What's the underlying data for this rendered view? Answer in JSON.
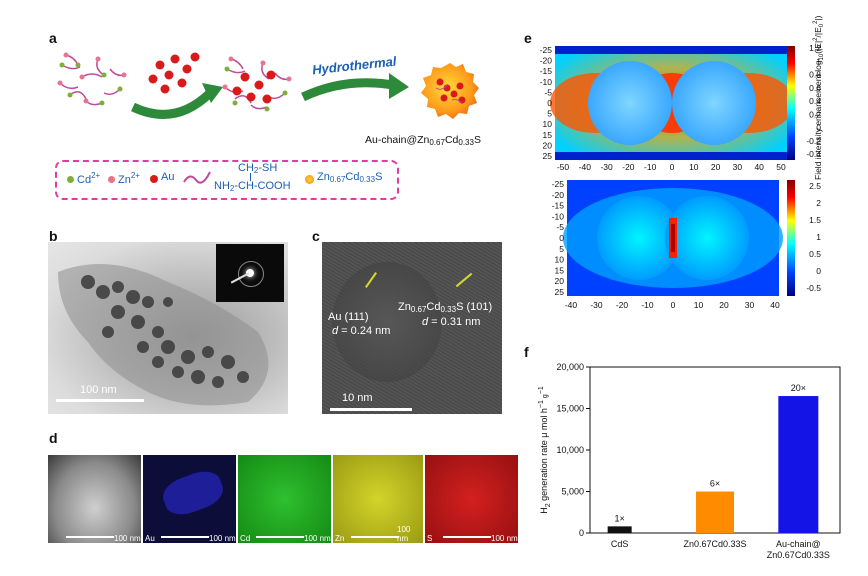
{
  "panels": {
    "a": "a",
    "b": "b",
    "c": "c",
    "d": "d",
    "e": "e",
    "f": "f"
  },
  "panel_a": {
    "hydrothermal": "Hydrothermal",
    "product_label_main": "Au-chain@Zn",
    "product_sub1": "0.67",
    "product_mid": "Cd",
    "product_sub2": "0.33",
    "product_end": "S",
    "legend": {
      "cd": "Cd",
      "cd_sup": "2+",
      "zn": "Zn",
      "zn_sup": "2+",
      "au": "Au",
      "ligand_top": "CH",
      "ligand_top_sub": "2",
      "ligand_top_end": "-SH",
      "ligand_bottom_a": "NH",
      "ligand_bottom_sub": "2",
      "ligand_bottom_end": "-CH-COOH",
      "shell_main": "Zn",
      "shell_sub1": "0.67",
      "shell_mid": "Cd",
      "shell_sub2": "0.33",
      "shell_end": "S"
    },
    "colors": {
      "cd": "#7fae3a",
      "zn": "#e8748e",
      "au": "#d91a1a",
      "arrow": "#2d8a3a",
      "ligand": "#c04b9b",
      "legend_border": "#e23aa6"
    }
  },
  "panel_b": {
    "scale_label": "100 nm"
  },
  "panel_c": {
    "scale_label": "10 nm",
    "au_plane": "Au (111)",
    "au_d": "d",
    "au_d_val": " = 0.24 nm",
    "zcs_a": "Zn",
    "zcs_sub1": "0.67",
    "zcs_b": "Cd",
    "zcs_sub2": "0.33",
    "zcs_c": "S (101)",
    "zcs_d": "d",
    "zcs_d_val": " = 0.31 nm"
  },
  "panel_d": {
    "panels": [
      {
        "element": "",
        "scale": "100 nm",
        "color": "#888888"
      },
      {
        "element": "Au",
        "scale": "100 nm",
        "color": "#1c1cb0"
      },
      {
        "element": "Cd",
        "scale": "100 nm",
        "color": "#1fa51f"
      },
      {
        "element": "Zn",
        "scale": "100 nm",
        "color": "#c4c41c"
      },
      {
        "element": "S",
        "scale": "100 nm",
        "color": "#c01c1c"
      }
    ]
  },
  "panel_e": {
    "top": {
      "x_ticks": [
        "-50",
        "-40",
        "-30",
        "-20",
        "-10",
        "0",
        "10",
        "20",
        "30",
        "40",
        "50"
      ],
      "y_ticks": [
        "-25",
        "-20",
        "-15",
        "-10",
        "-5",
        "0",
        "5",
        "10",
        "15",
        "20",
        "25"
      ],
      "colorbar_ticks": [
        "1.2",
        "1",
        "0.8",
        "0.6",
        "0.4",
        "0.2",
        "0",
        "-0.2",
        "-0.4"
      ]
    },
    "bottom": {
      "x_ticks": [
        "-40",
        "-30",
        "-20",
        "-10",
        "0",
        "10",
        "20",
        "30",
        "40"
      ],
      "y_ticks": [
        "-25",
        "-20",
        "-15",
        "-10",
        "-5",
        "0",
        "5",
        "10",
        "15",
        "20",
        "25"
      ],
      "colorbar_ticks": [
        "2.5",
        "2",
        "1.5",
        "1",
        "0.5",
        "0",
        "-0.5"
      ]
    },
    "colorbar_label": "Field intensity enhancement log",
    "colorbar_label_sub": "10",
    "colorbar_label_tail": "(|E|",
    "colorbar_label_sup1": "2",
    "colorbar_label_mid": "/|E",
    "colorbar_label_sub2": "0",
    "colorbar_label_sup2": "2",
    "colorbar_label_end": "|)"
  },
  "chart_data": {
    "type": "bar",
    "categories": [
      "CdS",
      "Zn0.67Cd0.33S",
      "Au-chain@Zn0.67Cd0.33S"
    ],
    "category_labels": [
      {
        "line1": "CdS",
        "line2": ""
      },
      {
        "line1": "Zn0.67Cd0.33S",
        "line2": ""
      },
      {
        "line1": "Au-chain@",
        "line2": "Zn0.67Cd0.33S"
      }
    ],
    "values": [
      800,
      5000,
      16500
    ],
    "annotations": [
      "1×",
      "6×",
      "20×"
    ],
    "colors": [
      "#111111",
      "#ff8c00",
      "#1414e6"
    ],
    "ylabel": "H2 generation rate μ mol h−1 g−1",
    "ylabel_parts": {
      "a": "H",
      "sub": "2",
      "b": " generation rate μ mol h",
      "sup1": "−1",
      "c": " g",
      "sup2": "−1"
    },
    "ylim": [
      0,
      20000
    ],
    "yticks": [
      "0",
      "5,000",
      "10,000",
      "15,000",
      "20,000"
    ]
  }
}
